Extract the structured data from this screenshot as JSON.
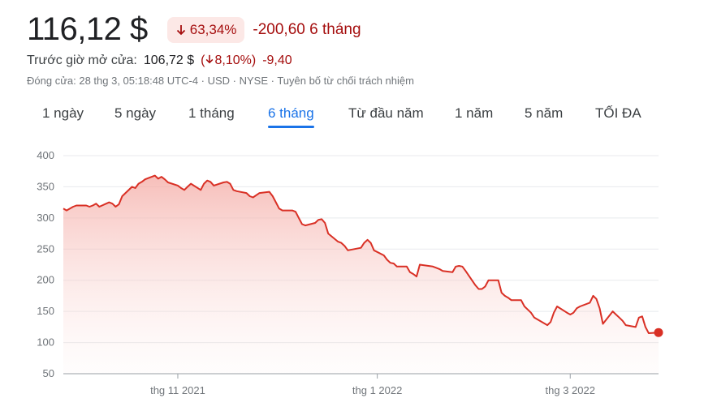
{
  "quote": {
    "price": "116,12 $",
    "change_percent": "63,34%",
    "change_abs": "-200,60",
    "change_period": "6 tháng",
    "premarket_label": "Trước giờ mở cửa:",
    "premarket_price": "106,72 $",
    "premarket_open_paren": "(",
    "premarket_percent": "8,10%)",
    "premarket_abs": "-9,40",
    "close_info": "Đóng cửa: 28 thg 3, 05:18:48 UTC-4 · USD · NYSE · Tuyên bố từ chối trách nhiệm",
    "negative_color": "#a50e0e"
  },
  "tabs": [
    {
      "label": "1 ngày",
      "active": false
    },
    {
      "label": "5 ngày",
      "active": false
    },
    {
      "label": "1 tháng",
      "active": false
    },
    {
      "label": "6 tháng",
      "active": true
    },
    {
      "label": "Từ đầu năm",
      "active": false
    },
    {
      "label": "1 năm",
      "active": false
    },
    {
      "label": "5 năm",
      "active": false
    },
    {
      "label": "TỐI ĐA",
      "active": false
    }
  ],
  "chart_data": {
    "type": "area",
    "ylim": [
      50,
      400
    ],
    "yticks": [
      400,
      350,
      300,
      250,
      200,
      150,
      100,
      50
    ],
    "xlim": [
      "2021-09-27",
      "2022-03-28"
    ],
    "xticks": [
      {
        "date": "2021-11-01",
        "label": "thg 11 2021"
      },
      {
        "date": "2022-01-01",
        "label": "thg 1 2022"
      },
      {
        "date": "2022-03-01",
        "label": "thg 3 2022"
      }
    ],
    "grid": true,
    "line_color": "#d93025",
    "series": [
      {
        "points": [
          [
            "2021-09-27",
            315
          ],
          [
            "2021-09-28",
            312
          ],
          [
            "2021-09-30",
            318
          ],
          [
            "2021-10-01",
            320
          ],
          [
            "2021-10-04",
            320
          ],
          [
            "2021-10-05",
            318
          ],
          [
            "2021-10-06",
            320
          ],
          [
            "2021-10-07",
            323
          ],
          [
            "2021-10-08",
            318
          ],
          [
            "2021-10-11",
            325
          ],
          [
            "2021-10-12",
            323
          ],
          [
            "2021-10-13",
            318
          ],
          [
            "2021-10-14",
            322
          ],
          [
            "2021-10-15",
            335
          ],
          [
            "2021-10-18",
            350
          ],
          [
            "2021-10-19",
            348
          ],
          [
            "2021-10-20",
            355
          ],
          [
            "2021-10-21",
            358
          ],
          [
            "2021-10-22",
            362
          ],
          [
            "2021-10-25",
            368
          ],
          [
            "2021-10-26",
            363
          ],
          [
            "2021-10-27",
            366
          ],
          [
            "2021-10-28",
            362
          ],
          [
            "2021-10-29",
            357
          ],
          [
            "2021-11-01",
            352
          ],
          [
            "2021-11-02",
            348
          ],
          [
            "2021-11-03",
            345
          ],
          [
            "2021-11-04",
            350
          ],
          [
            "2021-11-05",
            355
          ],
          [
            "2021-11-08",
            345
          ],
          [
            "2021-11-09",
            355
          ],
          [
            "2021-11-10",
            360
          ],
          [
            "2021-11-11",
            358
          ],
          [
            "2021-11-12",
            352
          ],
          [
            "2021-11-15",
            357
          ],
          [
            "2021-11-16",
            358
          ],
          [
            "2021-11-17",
            355
          ],
          [
            "2021-11-18",
            345
          ],
          [
            "2021-11-19",
            343
          ],
          [
            "2021-11-22",
            340
          ],
          [
            "2021-11-23",
            335
          ],
          [
            "2021-11-24",
            333
          ],
          [
            "2021-11-26",
            340
          ],
          [
            "2021-11-29",
            342
          ],
          [
            "2021-11-30",
            335
          ],
          [
            "2021-12-01",
            325
          ],
          [
            "2021-12-02",
            315
          ],
          [
            "2021-12-03",
            312
          ],
          [
            "2021-12-06",
            312
          ],
          [
            "2021-12-07",
            310
          ],
          [
            "2021-12-08",
            300
          ],
          [
            "2021-12-09",
            290
          ],
          [
            "2021-12-10",
            288
          ],
          [
            "2021-12-13",
            292
          ],
          [
            "2021-12-14",
            297
          ],
          [
            "2021-12-15",
            298
          ],
          [
            "2021-12-16",
            292
          ],
          [
            "2021-12-17",
            275
          ],
          [
            "2021-12-20",
            262
          ],
          [
            "2021-12-21",
            260
          ],
          [
            "2021-12-22",
            255
          ],
          [
            "2021-12-23",
            248
          ],
          [
            "2021-12-27",
            252
          ],
          [
            "2021-12-28",
            260
          ],
          [
            "2021-12-29",
            265
          ],
          [
            "2021-12-30",
            260
          ],
          [
            "2021-12-31",
            248
          ],
          [
            "2022-01-03",
            240
          ],
          [
            "2022-01-04",
            233
          ],
          [
            "2022-01-05",
            228
          ],
          [
            "2022-01-06",
            227
          ],
          [
            "2022-01-07",
            222
          ],
          [
            "2022-01-10",
            222
          ],
          [
            "2022-01-11",
            213
          ],
          [
            "2022-01-12",
            210
          ],
          [
            "2022-01-13",
            206
          ],
          [
            "2022-01-14",
            225
          ],
          [
            "2022-01-18",
            222
          ],
          [
            "2022-01-19",
            220
          ],
          [
            "2022-01-20",
            218
          ],
          [
            "2022-01-21",
            215
          ],
          [
            "2022-01-24",
            213
          ],
          [
            "2022-01-25",
            222
          ],
          [
            "2022-01-26",
            223
          ],
          [
            "2022-01-27",
            222
          ],
          [
            "2022-01-28",
            215
          ],
          [
            "2022-01-31",
            192
          ],
          [
            "2022-02-01",
            186
          ],
          [
            "2022-02-02",
            186
          ],
          [
            "2022-02-03",
            190
          ],
          [
            "2022-02-04",
            200
          ],
          [
            "2022-02-07",
            200
          ],
          [
            "2022-02-08",
            180
          ],
          [
            "2022-02-09",
            175
          ],
          [
            "2022-02-10",
            172
          ],
          [
            "2022-02-11",
            168
          ],
          [
            "2022-02-14",
            168
          ],
          [
            "2022-02-15",
            158
          ],
          [
            "2022-02-16",
            153
          ],
          [
            "2022-02-17",
            148
          ],
          [
            "2022-02-18",
            140
          ],
          [
            "2022-02-22",
            128
          ],
          [
            "2022-02-23",
            133
          ],
          [
            "2022-02-24",
            148
          ],
          [
            "2022-02-25",
            158
          ],
          [
            "2022-02-28",
            148
          ],
          [
            "2022-03-01",
            145
          ],
          [
            "2022-03-02",
            148
          ],
          [
            "2022-03-03",
            155
          ],
          [
            "2022-03-04",
            158
          ],
          [
            "2022-03-07",
            164
          ],
          [
            "2022-03-08",
            175
          ],
          [
            "2022-03-09",
            170
          ],
          [
            "2022-03-10",
            155
          ],
          [
            "2022-03-11",
            130
          ],
          [
            "2022-03-14",
            150
          ],
          [
            "2022-03-15",
            145
          ],
          [
            "2022-03-16",
            140
          ],
          [
            "2022-03-17",
            135
          ],
          [
            "2022-03-18",
            128
          ],
          [
            "2022-03-21",
            125
          ],
          [
            "2022-03-22",
            140
          ],
          [
            "2022-03-23",
            142
          ],
          [
            "2022-03-24",
            125
          ],
          [
            "2022-03-25",
            115
          ]
        ]
      }
    ],
    "last_point": [
      "2022-03-28",
      116.12
    ]
  }
}
